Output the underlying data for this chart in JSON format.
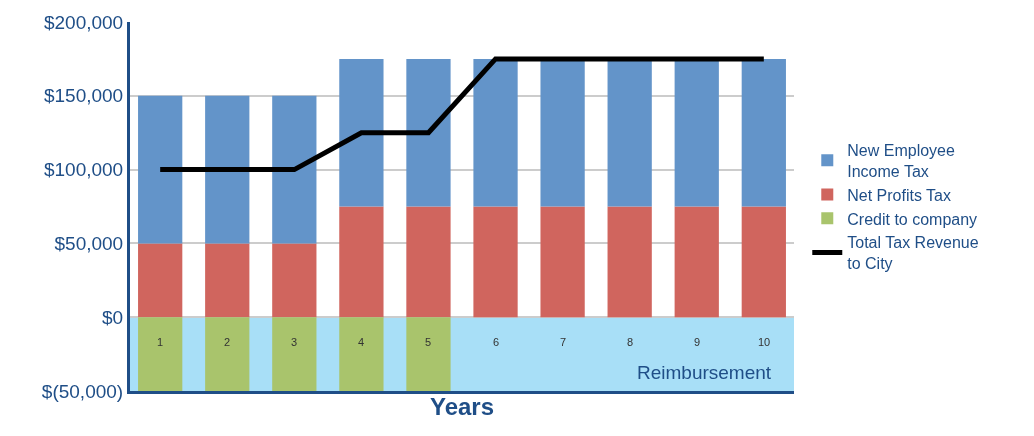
{
  "chart_data": {
    "type": "bar",
    "stacked": true,
    "xlabel": "Years",
    "categories": [
      "1",
      "2",
      "3",
      "4",
      "5",
      "6",
      "7",
      "8",
      "9",
      "10"
    ],
    "series": [
      {
        "name": "Net Profits Tax",
        "color": "#d0655e",
        "values": [
          50000,
          50000,
          50000,
          75000,
          75000,
          75000,
          75000,
          75000,
          75000,
          75000
        ]
      },
      {
        "name": "New Employee Income Tax",
        "color": "#6394c9",
        "values": [
          100000,
          100000,
          100000,
          100000,
          100000,
          100000,
          100000,
          100000,
          100000,
          100000
        ]
      },
      {
        "name": "Credit to company",
        "color": "#a9c46c",
        "values": [
          -50000,
          -50000,
          -50000,
          -50000,
          -50000,
          null,
          null,
          null,
          null,
          null
        ]
      },
      {
        "name": "Total Tax Revenue to City",
        "color": "#000000",
        "type": "line",
        "values": [
          100000,
          100000,
          100000,
          125000,
          125000,
          175000,
          175000,
          175000,
          175000,
          175000
        ]
      }
    ],
    "ylim": [
      -50000,
      200000
    ],
    "yticks": [
      {
        "value": -50000,
        "label": "$(50,000)"
      },
      {
        "value": 0,
        "label": "$0"
      },
      {
        "value": 50000,
        "label": "$50,000"
      },
      {
        "value": 100000,
        "label": "$100,000"
      },
      {
        "value": 150000,
        "label": "$150,000"
      },
      {
        "value": 200000,
        "label": "$200,000"
      }
    ],
    "bands": [
      {
        "axis": "y",
        "from": -50000,
        "to": 0,
        "label": "Reimbursement",
        "color": "#a8dff7"
      }
    ],
    "grid": "y",
    "legend": "right",
    "marker": "none",
    "line_style": "solid"
  }
}
